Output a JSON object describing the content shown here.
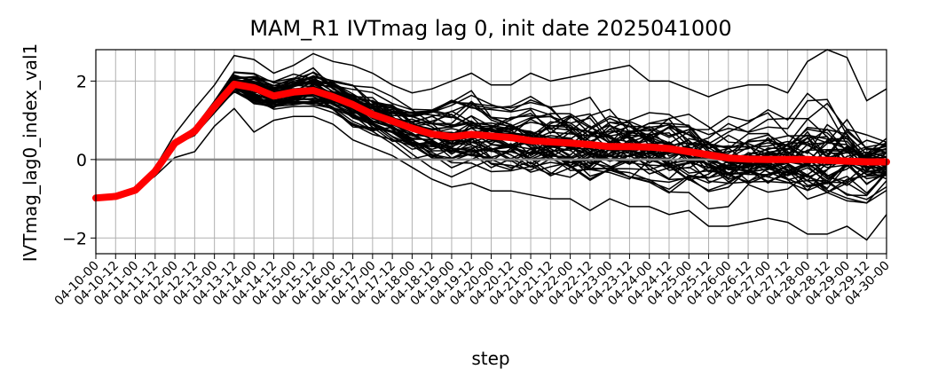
{
  "chart_data": {
    "type": "line",
    "title": "MAM_R1 IVTmag lag 0, init date 2025041000",
    "xlabel": "step",
    "ylabel": "IVTmag_lag0_index_val1",
    "ylim": [
      -2.4,
      2.8
    ],
    "yticks": [
      -2,
      0,
      2
    ],
    "ytick_labels": [
      "−2",
      "0",
      "2"
    ],
    "grid": true,
    "legend": "none",
    "categories": [
      "04-10-00",
      "04-10-12",
      "04-11-00",
      "04-11-12",
      "04-12-00",
      "04-12-12",
      "04-13-00",
      "04-13-12",
      "04-14-00",
      "04-14-12",
      "04-15-00",
      "04-15-12",
      "04-16-00",
      "04-16-12",
      "04-17-00",
      "04-17-12",
      "04-18-00",
      "04-18-12",
      "04-19-00",
      "04-19-12",
      "04-20-00",
      "04-20-12",
      "04-21-00",
      "04-21-12",
      "04-22-00",
      "04-22-12",
      "04-23-00",
      "04-23-12",
      "04-24-00",
      "04-24-12",
      "04-25-00",
      "04-25-12",
      "04-26-00",
      "04-26-12",
      "04-27-00",
      "04-27-12",
      "04-28-00",
      "04-28-12",
      "04-29-00",
      "04-29-12",
      "04-30-00"
    ],
    "reference_line": {
      "y": 0,
      "color": "#888888"
    },
    "mean_series": {
      "color": "#ff0000",
      "values": [
        -0.98,
        -0.94,
        -0.78,
        -0.3,
        0.42,
        0.72,
        1.35,
        1.92,
        1.83,
        1.62,
        1.72,
        1.76,
        1.6,
        1.4,
        1.15,
        0.98,
        0.8,
        0.65,
        0.58,
        0.64,
        0.6,
        0.56,
        0.48,
        0.45,
        0.42,
        0.38,
        0.33,
        0.33,
        0.32,
        0.28,
        0.2,
        0.12,
        0.04,
        0.01,
        0.0,
        0.0,
        0.0,
        -0.02,
        -0.04,
        -0.06,
        -0.06
      ]
    },
    "ensemble": {
      "color": "#000000",
      "members": 50,
      "min_values": [
        -0.98,
        -0.94,
        -0.78,
        -0.42,
        0.05,
        0.2,
        0.85,
        1.3,
        0.7,
        1.0,
        1.1,
        1.1,
        0.9,
        0.5,
        0.3,
        0.1,
        -0.2,
        -0.5,
        -0.7,
        -0.6,
        -0.8,
        -0.8,
        -0.9,
        -1.0,
        -1.0,
        -1.3,
        -1.0,
        -1.2,
        -1.2,
        -1.4,
        -1.3,
        -1.7,
        -1.7,
        -1.6,
        -1.5,
        -1.6,
        -1.9,
        -1.9,
        -1.7,
        -2.05,
        -1.4
      ],
      "max_values": [
        -0.98,
        -0.94,
        -0.78,
        -0.2,
        0.65,
        1.3,
        1.9,
        2.65,
        2.55,
        2.2,
        2.4,
        2.7,
        2.5,
        2.4,
        2.2,
        1.9,
        1.7,
        1.8,
        2.0,
        2.2,
        1.9,
        1.9,
        2.2,
        2.0,
        2.1,
        2.2,
        2.3,
        2.4,
        2.0,
        2.0,
        1.8,
        1.6,
        1.8,
        1.9,
        1.9,
        1.7,
        2.5,
        2.8,
        2.6,
        1.5,
        1.8
      ]
    }
  }
}
